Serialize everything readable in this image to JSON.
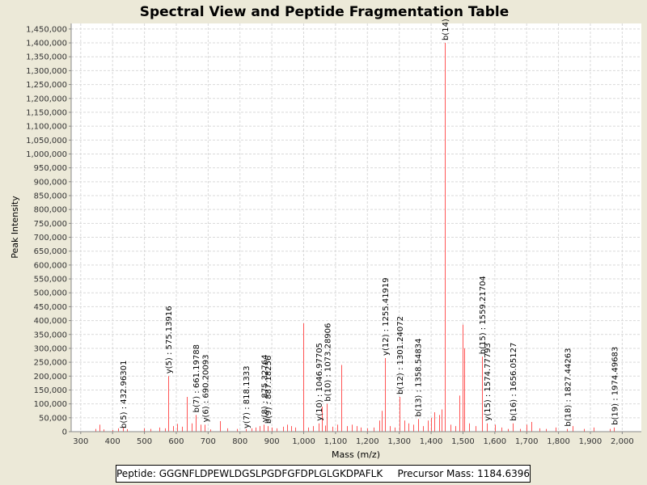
{
  "footer": {
    "peptide_text": "Peptide: GGGNFLDPEWLDGSLPGDFGFDPLGLGKDPAFLK",
    "precursor_text": "Precursor Mass: 1184.6396"
  },
  "colors": {
    "peak": "#FF5555",
    "grid": "#D9D9D9",
    "background": "#ECE9D8",
    "plot": "#FFFFFF"
  },
  "chart_data": {
    "type": "bar",
    "title": "Spectral View and Peptide Fragmentation Table",
    "xlabel": "Mass (m/z)",
    "ylabel": "Peak Intensity",
    "xlim": [
      270,
      2060
    ],
    "ylim": [
      0,
      1470000
    ],
    "xticks": [
      300,
      400,
      500,
      600,
      700,
      800,
      900,
      1000,
      1100,
      1200,
      1300,
      1400,
      1500,
      1600,
      1700,
      1800,
      1900,
      2000
    ],
    "xtick_labels": [
      "300",
      "400",
      "500",
      "600",
      "700",
      "800",
      "900",
      "1,000",
      "1,100",
      "1,200",
      "1,300",
      "1,400",
      "1,500",
      "1,600",
      "1,700",
      "1,800",
      "1,900",
      "2,000"
    ],
    "yticks": [
      0,
      50000,
      100000,
      150000,
      200000,
      250000,
      300000,
      350000,
      400000,
      450000,
      500000,
      550000,
      600000,
      650000,
      700000,
      750000,
      800000,
      850000,
      900000,
      950000,
      1000000,
      1050000,
      1100000,
      1150000,
      1200000,
      1250000,
      1300000,
      1350000,
      1400000,
      1450000
    ],
    "ytick_labels": [
      "0",
      "50,000",
      "100,000",
      "150,000",
      "200,000",
      "250,000",
      "300,000",
      "350,000",
      "400,000",
      "450,000",
      "500,000",
      "550,000",
      "600,000",
      "650,000",
      "700,000",
      "750,000",
      "800,000",
      "850,000",
      "900,000",
      "950,000",
      "1,000,000",
      "1,050,000",
      "1,100,000",
      "1,150,000",
      "1,200,000",
      "1,250,000",
      "1,300,000",
      "1,350,000",
      "1,400,000",
      "1,450,000"
    ],
    "grid": true,
    "peaks": [
      {
        "mz": 345,
        "intensity": 10000
      },
      {
        "mz": 360,
        "intensity": 25000
      },
      {
        "mz": 372,
        "intensity": 8000
      },
      {
        "mz": 400,
        "intensity": 6000
      },
      {
        "mz": 418,
        "intensity": 12000
      },
      {
        "mz": 433,
        "intensity": 14000
      },
      {
        "mz": 446,
        "intensity": 9000
      },
      {
        "mz": 498,
        "intensity": 12000
      },
      {
        "mz": 520,
        "intensity": 10000
      },
      {
        "mz": 548,
        "intensity": 15000
      },
      {
        "mz": 565,
        "intensity": 12000
      },
      {
        "mz": 575,
        "intensity": 200000
      },
      {
        "mz": 590,
        "intensity": 20000
      },
      {
        "mz": 603,
        "intensity": 28000
      },
      {
        "mz": 618,
        "intensity": 18000
      },
      {
        "mz": 633,
        "intensity": 125000
      },
      {
        "mz": 648,
        "intensity": 30000
      },
      {
        "mz": 661,
        "intensity": 60000
      },
      {
        "mz": 676,
        "intensity": 25000
      },
      {
        "mz": 690,
        "intensity": 25000
      },
      {
        "mz": 706,
        "intensity": 8000
      },
      {
        "mz": 738,
        "intensity": 38000
      },
      {
        "mz": 760,
        "intensity": 12000
      },
      {
        "mz": 790,
        "intensity": 10000
      },
      {
        "mz": 818,
        "intensity": 10000
      },
      {
        "mz": 835,
        "intensity": 12000
      },
      {
        "mz": 850,
        "intensity": 15000
      },
      {
        "mz": 862,
        "intensity": 20000
      },
      {
        "mz": 875,
        "intensity": 25000
      },
      {
        "mz": 887,
        "intensity": 20000
      },
      {
        "mz": 900,
        "intensity": 15000
      },
      {
        "mz": 915,
        "intensity": 12000
      },
      {
        "mz": 935,
        "intensity": 18000
      },
      {
        "mz": 948,
        "intensity": 25000
      },
      {
        "mz": 960,
        "intensity": 20000
      },
      {
        "mz": 973,
        "intensity": 15000
      },
      {
        "mz": 998,
        "intensity": 390000
      },
      {
        "mz": 1015,
        "intensity": 15000
      },
      {
        "mz": 1030,
        "intensity": 20000
      },
      {
        "mz": 1046,
        "intensity": 30000
      },
      {
        "mz": 1056,
        "intensity": 90000
      },
      {
        "mz": 1066,
        "intensity": 22000
      },
      {
        "mz": 1073,
        "intensity": 100000
      },
      {
        "mz": 1090,
        "intensity": 18000
      },
      {
        "mz": 1105,
        "intensity": 25000
      },
      {
        "mz": 1118,
        "intensity": 240000
      },
      {
        "mz": 1135,
        "intensity": 20000
      },
      {
        "mz": 1150,
        "intensity": 25000
      },
      {
        "mz": 1165,
        "intensity": 20000
      },
      {
        "mz": 1180,
        "intensity": 15000
      },
      {
        "mz": 1200,
        "intensity": 12000
      },
      {
        "mz": 1220,
        "intensity": 15000
      },
      {
        "mz": 1238,
        "intensity": 40000
      },
      {
        "mz": 1245,
        "intensity": 75000
      },
      {
        "mz": 1255,
        "intensity": 265000
      },
      {
        "mz": 1270,
        "intensity": 20000
      },
      {
        "mz": 1285,
        "intensity": 15000
      },
      {
        "mz": 1301,
        "intensity": 125000
      },
      {
        "mz": 1315,
        "intensity": 40000
      },
      {
        "mz": 1330,
        "intensity": 30000
      },
      {
        "mz": 1345,
        "intensity": 25000
      },
      {
        "mz": 1358,
        "intensity": 45000
      },
      {
        "mz": 1375,
        "intensity": 20000
      },
      {
        "mz": 1390,
        "intensity": 40000
      },
      {
        "mz": 1400,
        "intensity": 50000
      },
      {
        "mz": 1410,
        "intensity": 70000
      },
      {
        "mz": 1425,
        "intensity": 60000
      },
      {
        "mz": 1433,
        "intensity": 80000
      },
      {
        "mz": 1443,
        "intensity": 1400000
      },
      {
        "mz": 1460,
        "intensity": 25000
      },
      {
        "mz": 1475,
        "intensity": 20000
      },
      {
        "mz": 1488,
        "intensity": 130000
      },
      {
        "mz": 1500,
        "intensity": 385000
      },
      {
        "mz": 1505,
        "intensity": 300000
      },
      {
        "mz": 1520,
        "intensity": 30000
      },
      {
        "mz": 1540,
        "intensity": 20000
      },
      {
        "mz": 1559,
        "intensity": 270000
      },
      {
        "mz": 1575,
        "intensity": 30000
      },
      {
        "mz": 1600,
        "intensity": 25000
      },
      {
        "mz": 1620,
        "intensity": 15000
      },
      {
        "mz": 1640,
        "intensity": 10000
      },
      {
        "mz": 1656,
        "intensity": 30000
      },
      {
        "mz": 1680,
        "intensity": 10000
      },
      {
        "mz": 1700,
        "intensity": 25000
      },
      {
        "mz": 1715,
        "intensity": 35000
      },
      {
        "mz": 1740,
        "intensity": 12000
      },
      {
        "mz": 1760,
        "intensity": 10000
      },
      {
        "mz": 1790,
        "intensity": 15000
      },
      {
        "mz": 1827,
        "intensity": 10000
      },
      {
        "mz": 1845,
        "intensity": 20000
      },
      {
        "mz": 1880,
        "intensity": 10000
      },
      {
        "mz": 1910,
        "intensity": 15000
      },
      {
        "mz": 1960,
        "intensity": 10000
      },
      {
        "mz": 1974,
        "intensity": 15000
      }
    ],
    "annotations": [
      {
        "mz": 432.96301,
        "text": "b(5) : 432.96301",
        "top_intensity": 0
      },
      {
        "mz": 575.13916,
        "text": "y(5) : 575.13916",
        "top_intensity": 200000
      },
      {
        "mz": 661.19788,
        "text": "b(7) : 661.19788",
        "top_intensity": 60000
      },
      {
        "mz": 690.20093,
        "text": "y(6) : 690.20093",
        "top_intensity": 25000
      },
      {
        "mz": 818.1333,
        "text": "y(7) : 818.1333",
        "top_intensity": 0
      },
      {
        "mz": 875.32764,
        "text": "y(8) : 875.32764",
        "top_intensity": 25000
      },
      {
        "mz": 887.18256,
        "text": "b(9) : 887.18256",
        "top_intensity": 20000
      },
      {
        "mz": 1046.97705,
        "text": "y(10) : 1046.97705",
        "top_intensity": 30000
      },
      {
        "mz": 1073.28906,
        "text": "b(10) : 1073.28906",
        "top_intensity": 100000
      },
      {
        "mz": 1255.41919,
        "text": "y(12) : 1255.41919",
        "top_intensity": 265000
      },
      {
        "mz": 1301.24072,
        "text": "b(12) : 1301.24072",
        "top_intensity": 125000
      },
      {
        "mz": 1358.54834,
        "text": "b(13) : 1358.54834",
        "top_intensity": 45000
      },
      {
        "mz": 1443.0,
        "text": "b(14)",
        "top_intensity": 1400000
      },
      {
        "mz": 1559.21704,
        "text": "b(15) : 1559.21704",
        "top_intensity": 270000
      },
      {
        "mz": 1574.77793,
        "text": "y(15) : 1574.77793",
        "top_intensity": 30000
      },
      {
        "mz": 1656.05127,
        "text": "b(16) : 1656.05127",
        "top_intensity": 30000
      },
      {
        "mz": 1827.44263,
        "text": "b(18) : 1827.44263",
        "top_intensity": 10000
      },
      {
        "mz": 1974.49683,
        "text": "b(19) : 1974.49683",
        "top_intensity": 15000
      }
    ]
  }
}
